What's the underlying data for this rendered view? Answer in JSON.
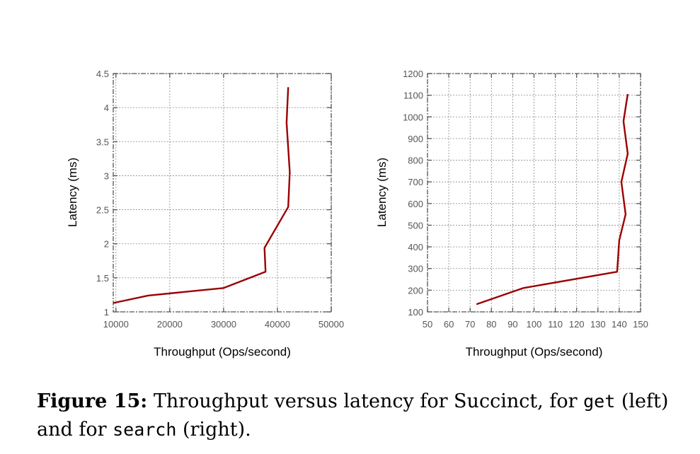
{
  "colors": {
    "line": "#9b0000",
    "grid": "#888888",
    "frame": "#555555"
  },
  "chart_data": [
    {
      "type": "line",
      "xlabel": "Throughput (Ops/second)",
      "ylabel": "Latency (ms)",
      "xlim": [
        9500,
        50000
      ],
      "ylim": [
        1,
        4.5
      ],
      "xticks": [
        10000,
        20000,
        30000,
        40000,
        50000
      ],
      "yticks": [
        1,
        1.5,
        2,
        2.5,
        3,
        3.5,
        4,
        4.5
      ],
      "xtick_labels": [
        "10000",
        "20000",
        "30000",
        "40000",
        "50000"
      ],
      "ytick_labels": [
        "1",
        "1.5",
        "2",
        "2.5",
        "3",
        "3.5",
        "4",
        "4.5"
      ],
      "grid": true,
      "series": [
        {
          "x": [
            9500,
            16000,
            30000,
            37800,
            37600,
            42000,
            42300,
            41700,
            42000
          ],
          "y": [
            1.13,
            1.24,
            1.35,
            1.59,
            1.94,
            2.54,
            3.05,
            3.78,
            4.3
          ]
        }
      ]
    },
    {
      "type": "line",
      "xlabel": "Throughput (Ops/second)",
      "ylabel": "Latency (ms)",
      "xlim": [
        50,
        150
      ],
      "ylim": [
        100,
        1200
      ],
      "xticks": [
        50,
        60,
        70,
        80,
        90,
        100,
        110,
        120,
        130,
        140,
        150
      ],
      "yticks": [
        100,
        200,
        300,
        400,
        500,
        600,
        700,
        800,
        900,
        1000,
        1100,
        1200
      ],
      "xtick_labels": [
        "50",
        "60",
        "70",
        "80",
        "90",
        "100",
        "110",
        "120",
        "130",
        "140",
        "150"
      ],
      "ytick_labels": [
        "100",
        "200",
        "300",
        "400",
        "500",
        "600",
        "700",
        "800",
        "900",
        "1000",
        "1100",
        "1200"
      ],
      "grid": true,
      "series": [
        {
          "x": [
            73,
            95,
            139,
            140,
            143,
            141,
            144,
            142,
            144
          ],
          "y": [
            135,
            210,
            285,
            430,
            550,
            700,
            830,
            980,
            1105
          ]
        }
      ]
    }
  ],
  "caption": {
    "label": "Figure 15:",
    "text1": " Throughput versus latency for Succinct, for ",
    "code1": "get",
    "text2": " (left) and for ",
    "code2": "search",
    "text3": " (right)."
  }
}
